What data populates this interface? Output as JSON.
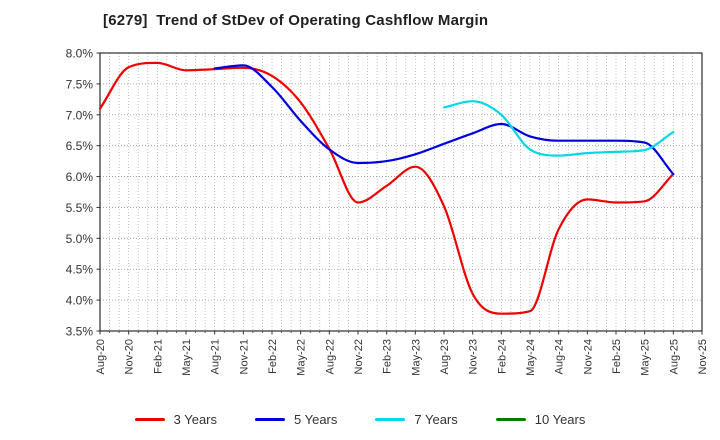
{
  "title": "[6279]  Trend of StDev of Operating Cashflow Margin",
  "chart_data": {
    "type": "line",
    "title": "[6279]  Trend of StDev of Operating Cashflow Margin",
    "xlabel": "",
    "ylabel": "",
    "y_unit": "%",
    "ylim": [
      3.5,
      8.0
    ],
    "y_ticks": [
      3.5,
      4.0,
      4.5,
      5.0,
      5.5,
      6.0,
      6.5,
      7.0,
      7.5,
      8.0
    ],
    "grid": true,
    "minor_vertical_grid_divisions": 3,
    "legend_position": "bottom",
    "x_categories": [
      "Aug-20",
      "Nov-20",
      "Feb-21",
      "May-21",
      "Aug-21",
      "Nov-21",
      "Feb-22",
      "May-22",
      "Aug-22",
      "Nov-22",
      "Feb-23",
      "May-23",
      "Aug-23",
      "Nov-23",
      "Feb-24",
      "May-24",
      "Aug-24",
      "Nov-24",
      "Feb-25",
      "May-25",
      "Aug-25",
      "Nov-25"
    ],
    "series": [
      {
        "name": "3 Years",
        "color": "#ee0000",
        "values": [
          7.1,
          7.77,
          7.84,
          7.72,
          7.74,
          7.76,
          7.63,
          7.2,
          6.45,
          5.58,
          5.85,
          6.16,
          5.52,
          4.1,
          3.78,
          3.82,
          5.15,
          5.63,
          5.58,
          5.6,
          6.04,
          null
        ]
      },
      {
        "name": "5 Years",
        "color": "#0000dd",
        "values": [
          null,
          null,
          null,
          null,
          7.75,
          7.8,
          7.45,
          6.9,
          6.44,
          6.22,
          6.25,
          6.36,
          6.53,
          6.7,
          6.85,
          6.65,
          6.58,
          6.58,
          6.58,
          6.55,
          6.04,
          null
        ]
      },
      {
        "name": "7 Years",
        "color": "#00d8e6",
        "values": [
          null,
          null,
          null,
          null,
          null,
          null,
          null,
          null,
          null,
          null,
          null,
          null,
          7.12,
          7.22,
          7.0,
          6.44,
          6.34,
          6.38,
          6.4,
          6.43,
          6.72,
          null
        ]
      },
      {
        "name": "10 Years",
        "color": "#008000",
        "values": [
          null,
          null,
          null,
          null,
          null,
          null,
          null,
          null,
          null,
          null,
          null,
          null,
          null,
          null,
          null,
          null,
          null,
          null,
          null,
          null,
          null,
          null
        ]
      }
    ]
  },
  "style": {
    "plot_border_color": "#000000",
    "h_grid_color": "#999999",
    "v_grid_color": "#b5b5b5",
    "tick_color": "#333333",
    "label_color": "#333333"
  }
}
